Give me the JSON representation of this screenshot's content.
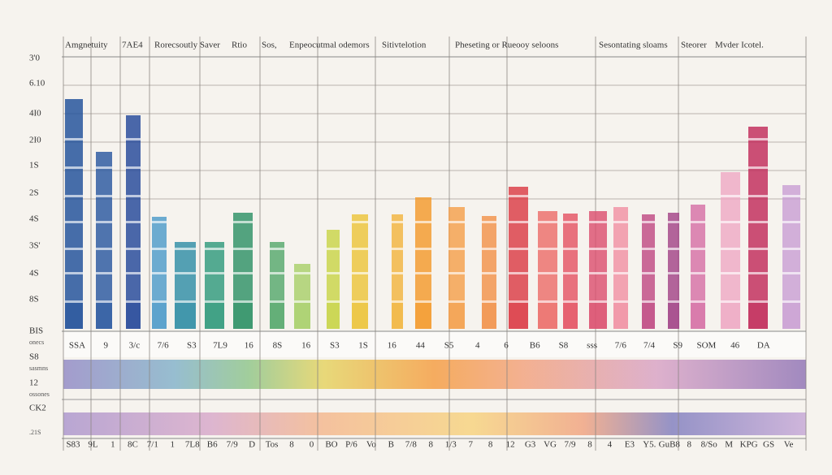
{
  "header": {
    "labels": [
      "Amgnetuity",
      "7AE4",
      "Rorecsoutly Saver",
      "Rtio",
      "Sos,",
      "Enpeocutmal odemors",
      "Sitivtelotion",
      "Pheseting or Rueooy seloons",
      "Sesontating sloams",
      "Steorer",
      "Mvder Icotel."
    ]
  },
  "y_labels": [
    "3'0",
    "6.10",
    "4I0",
    "2I0",
    "1S",
    "2S",
    "4S",
    "3S'",
    "4S",
    "8S"
  ],
  "side_labels": [
    "BIS",
    "onecs",
    "S8",
    "sasmns",
    "12",
    "ossones",
    "CK2",
    ".21S"
  ],
  "row_labels": [
    "SSA",
    "9",
    "3/c",
    "7/6",
    "S3",
    "7L9",
    "16",
    "8S",
    "16",
    "S3",
    "1S",
    "16",
    "44",
    "S5",
    "4",
    "6",
    "B6",
    "S8",
    "sss",
    "7/6",
    "7/4",
    "S9",
    "SOM",
    "46",
    "DA"
  ],
  "bottom_labels": [
    "S83",
    "9L",
    "1",
    "8C",
    "7/1",
    "1",
    "7L8",
    "B6",
    "7/9",
    "D",
    "Tos",
    "8",
    "0",
    "BO",
    "P/6",
    "Vo",
    "B",
    "7/8",
    "8",
    "1/3",
    "7",
    "8",
    "12",
    "G3",
    "VG",
    "7/9",
    "8",
    "4",
    "E3",
    "Y5.",
    "GuB8",
    "8",
    "8/So",
    "M",
    "KPG",
    "GS",
    "Ve"
  ]
}
